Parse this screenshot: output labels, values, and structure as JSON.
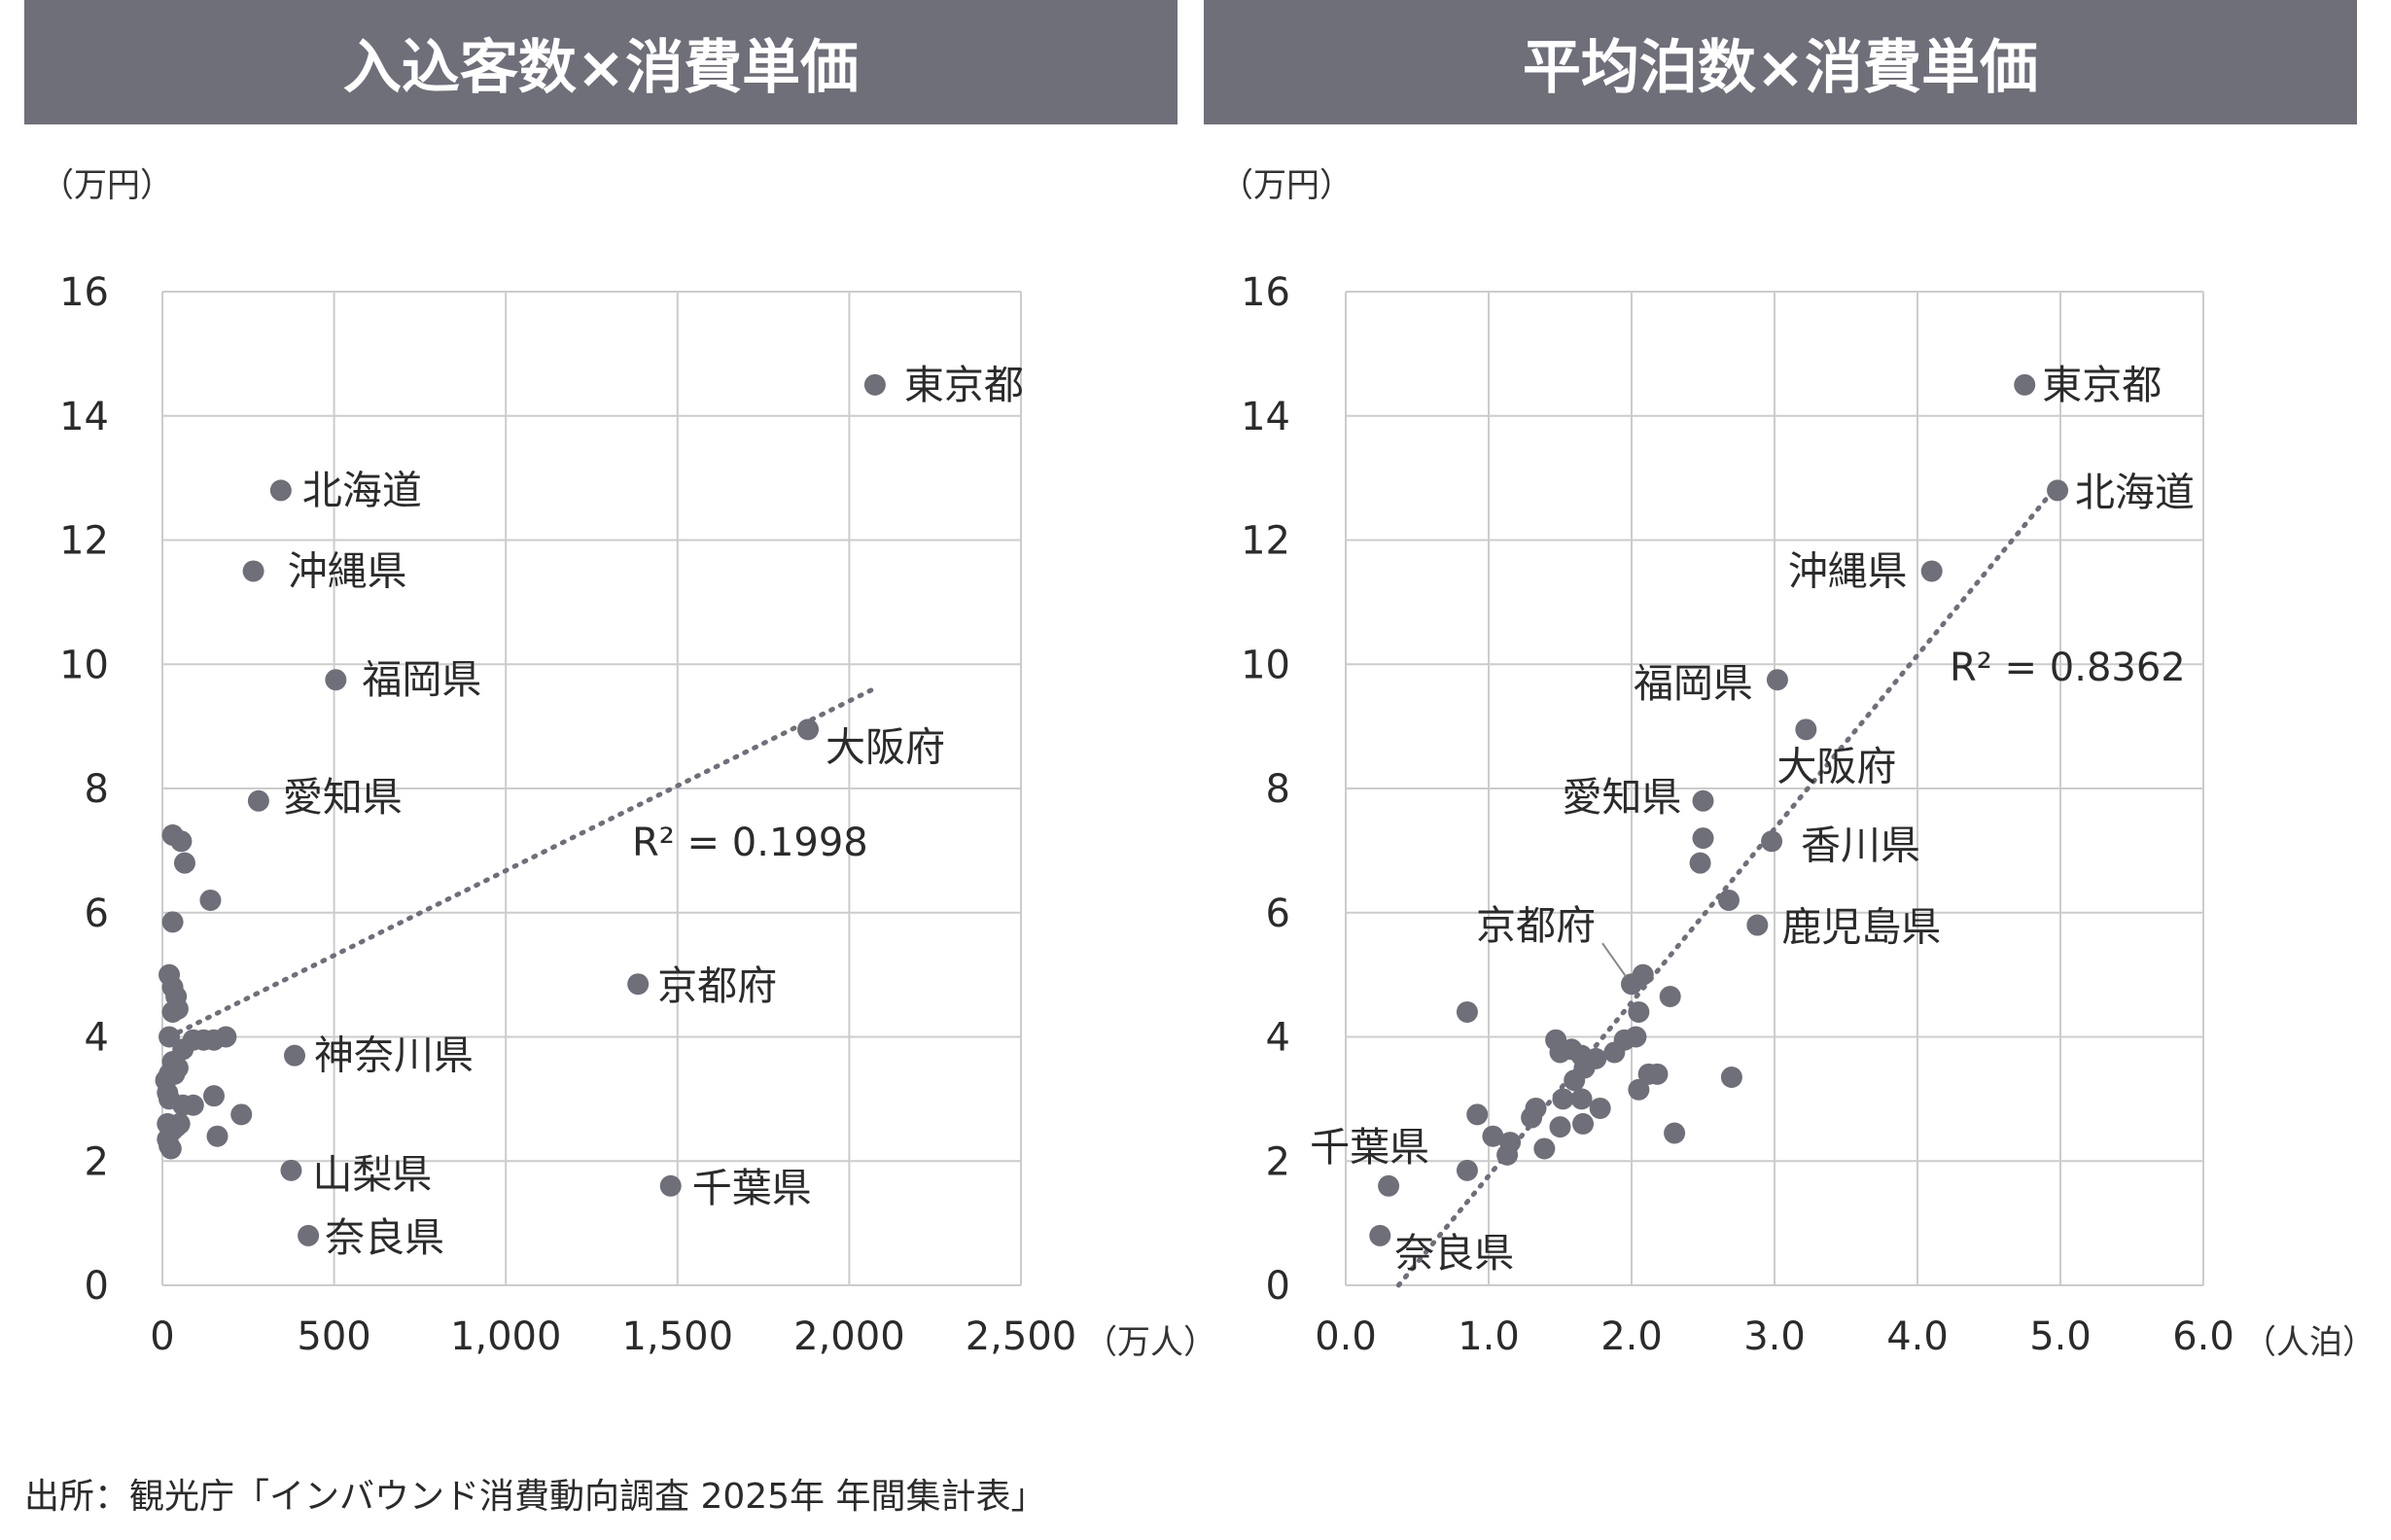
{
  "colors": {
    "header_bg": "#6f6f7a",
    "point": "#6f6f7a",
    "grid": "#cccccc",
    "trend": "#6f6f7a"
  },
  "source": "出所：観光庁「インバウンド消費動向調査 2025年 年間集計表」",
  "chart_data": [
    {
      "type": "scatter",
      "title": "入込客数×消費単価",
      "y_unit": "（万円）",
      "x_unit": "（万人）",
      "xlim": [
        0,
        2500
      ],
      "ylim": [
        0,
        16
      ],
      "x_ticks": [
        "0",
        "500",
        "1,000",
        "1,500",
        "2,000",
        "2,500"
      ],
      "y_ticks": [
        "0",
        "2",
        "4",
        "6",
        "8",
        "10",
        "12",
        "14",
        "16"
      ],
      "grid": true,
      "trendline": {
        "style": "dotted",
        "r2_label": "R² = 0.1998",
        "from": [
          20,
          4.0
        ],
        "to": [
          2070,
          9.6
        ]
      },
      "labeled_points": [
        {
          "name": "東京都",
          "x": 2075,
          "y": 14.5
        },
        {
          "name": "北海道",
          "x": 345,
          "y": 12.8
        },
        {
          "name": "沖縄県",
          "x": 265,
          "y": 11.5
        },
        {
          "name": "福岡県",
          "x": 505,
          "y": 9.75
        },
        {
          "name": "大阪府",
          "x": 1880,
          "y": 8.95
        },
        {
          "name": "愛知県",
          "x": 280,
          "y": 7.8
        },
        {
          "name": "京都府",
          "x": 1385,
          "y": 4.85
        },
        {
          "name": "神奈川県",
          "x": 385,
          "y": 3.7
        },
        {
          "name": "山梨県",
          "x": 375,
          "y": 1.85
        },
        {
          "name": "千葉県",
          "x": 1480,
          "y": 1.6
        },
        {
          "name": "奈良県",
          "x": 425,
          "y": 0.8
        }
      ],
      "points": [
        [
          30,
          7.25
        ],
        [
          55,
          7.15
        ],
        [
          65,
          6.8
        ],
        [
          140,
          6.2
        ],
        [
          30,
          5.85
        ],
        [
          20,
          5.0
        ],
        [
          30,
          4.8
        ],
        [
          40,
          4.65
        ],
        [
          45,
          4.45
        ],
        [
          30,
          4.4
        ],
        [
          20,
          4.0
        ],
        [
          60,
          3.8
        ],
        [
          90,
          3.95
        ],
        [
          120,
          3.95
        ],
        [
          150,
          3.95
        ],
        [
          185,
          4.0
        ],
        [
          30,
          3.6
        ],
        [
          45,
          3.5
        ],
        [
          20,
          3.4
        ],
        [
          10,
          3.3
        ],
        [
          35,
          3.4
        ],
        [
          15,
          3.1
        ],
        [
          20,
          3.0
        ],
        [
          60,
          2.9
        ],
        [
          90,
          2.9
        ],
        [
          150,
          3.05
        ],
        [
          230,
          2.75
        ],
        [
          15,
          2.6
        ],
        [
          40,
          2.55
        ],
        [
          30,
          2.5
        ],
        [
          50,
          2.6
        ],
        [
          15,
          2.35
        ],
        [
          20,
          2.25
        ],
        [
          160,
          2.4
        ],
        [
          25,
          2.2
        ]
      ]
    },
    {
      "type": "scatter",
      "title": "平均泊数×消費単価",
      "y_unit": "（万円）",
      "x_unit": "（人泊）",
      "xlim": [
        0,
        6
      ],
      "ylim": [
        0,
        16
      ],
      "x_ticks": [
        "0.0",
        "1.0",
        "2.0",
        "3.0",
        "4.0",
        "5.0",
        "6.0"
      ],
      "y_ticks": [
        "0",
        "2",
        "4",
        "6",
        "8",
        "10",
        "12",
        "14",
        "16"
      ],
      "grid": true,
      "trendline": {
        "style": "dotted",
        "r2_label": "R² = 0.8362",
        "from": [
          0.37,
          0.0
        ],
        "to": [
          4.95,
          12.8
        ]
      },
      "labeled_points": [
        {
          "name": "東京都",
          "x": 4.75,
          "y": 14.5
        },
        {
          "name": "北海道",
          "x": 4.98,
          "y": 12.8
        },
        {
          "name": "沖縄県",
          "x": 4.1,
          "y": 11.5
        },
        {
          "name": "福岡県",
          "x": 3.02,
          "y": 9.75
        },
        {
          "name": "大阪府",
          "x": 3.22,
          "y": 8.95
        },
        {
          "name": "愛知県",
          "x": 2.5,
          "y": 7.8
        },
        {
          "name": "香川県",
          "x": 2.98,
          "y": 7.15
        },
        {
          "name": "鹿児島県",
          "x": 2.88,
          "y": 5.8
        },
        {
          "name": "京都府",
          "x": 2.0,
          "y": 4.85
        },
        {
          "name": "千葉県",
          "x": 0.3,
          "y": 1.6
        },
        {
          "name": "奈良県",
          "x": 0.24,
          "y": 0.8
        }
      ],
      "points": [
        [
          2.5,
          7.2
        ],
        [
          2.48,
          6.8
        ],
        [
          2.68,
          6.2
        ],
        [
          2.08,
          5.0
        ],
        [
          2.27,
          4.65
        ],
        [
          0.85,
          4.4
        ],
        [
          2.05,
          4.4
        ],
        [
          1.95,
          3.95
        ],
        [
          2.03,
          4.0
        ],
        [
          1.47,
          3.95
        ],
        [
          1.5,
          3.75
        ],
        [
          1.58,
          3.8
        ],
        [
          1.65,
          3.7
        ],
        [
          1.75,
          3.65
        ],
        [
          1.88,
          3.75
        ],
        [
          1.67,
          3.5
        ],
        [
          1.6,
          3.3
        ],
        [
          2.12,
          3.4
        ],
        [
          2.18,
          3.4
        ],
        [
          2.7,
          3.35
        ],
        [
          1.52,
          3.0
        ],
        [
          1.65,
          3.0
        ],
        [
          1.78,
          2.85
        ],
        [
          2.05,
          3.15
        ],
        [
          1.33,
          2.85
        ],
        [
          1.3,
          2.7
        ],
        [
          1.5,
          2.55
        ],
        [
          1.66,
          2.6
        ],
        [
          2.3,
          2.45
        ],
        [
          0.92,
          2.75
        ],
        [
          1.03,
          2.4
        ],
        [
          1.15,
          2.3
        ],
        [
          1.13,
          2.1
        ],
        [
          1.39,
          2.2
        ],
        [
          0.85,
          1.85
        ]
      ]
    }
  ]
}
